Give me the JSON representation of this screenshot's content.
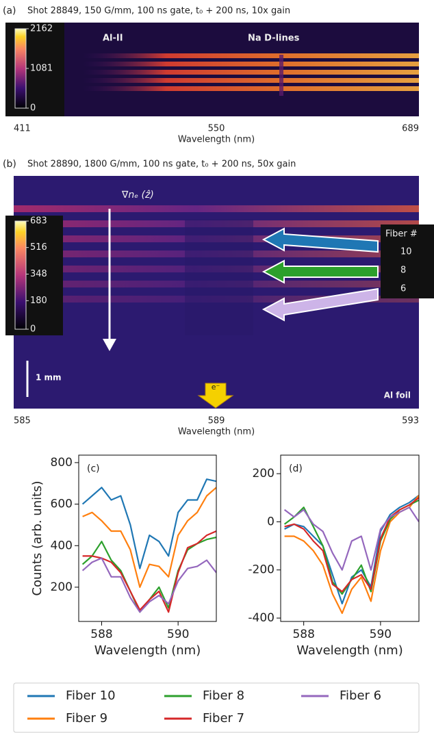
{
  "chart_data": [
    {
      "type": "image",
      "label": "(a)",
      "title": "Shot 28849, 150 G/mm, 100 ns gate, t₀ + 200 ns, 10x gain",
      "xlabel": "Wavelength (nm)",
      "xlim": [
        411,
        689
      ],
      "xticks": [
        411,
        550,
        689
      ],
      "clim": [
        0,
        2162
      ],
      "cticks": [
        0,
        1081,
        2162
      ],
      "annotations": [
        "Al-II",
        "Na D-lines"
      ]
    },
    {
      "type": "image",
      "label": "(b)",
      "title": "Shot 28890, 1800 G/mm, 100 ns gate, t₀ + 200 ns, 50x gain",
      "xlabel": "Wavelength (nm)",
      "xlim": [
        585,
        593
      ],
      "xticks": [
        585,
        589,
        593
      ],
      "clim": [
        0,
        683
      ],
      "cticks": [
        0,
        180,
        348,
        516,
        683
      ],
      "annotations": [
        "∇nₑ (ẑ)",
        "1 mm",
        "e⁻",
        "Al foil"
      ],
      "fibers": {
        "title": "Fiber #",
        "labels": [
          "10",
          "8",
          "6"
        ]
      }
    },
    {
      "type": "line",
      "label": "(c)",
      "ylabel": "Counts (arb. units)",
      "xlabel": "Wavelength (nm)",
      "x": [
        587.5,
        587.75,
        588,
        588.25,
        588.5,
        588.75,
        589,
        589.25,
        589.5,
        589.75,
        590,
        590.25,
        590.5,
        590.75,
        591
      ],
      "xlim": [
        587.4,
        591
      ],
      "xticks": [
        588,
        590
      ],
      "ylim": [
        35,
        836
      ],
      "yticks": [
        200,
        400,
        600,
        800
      ],
      "series": [
        {
          "name": "Fiber 10",
          "color": "#1f77b4",
          "values": [
            600,
            640,
            680,
            620,
            640,
            500,
            290,
            450,
            420,
            350,
            560,
            620,
            620,
            720,
            710
          ]
        },
        {
          "name": "Fiber 9",
          "color": "#ff7f0e",
          "values": [
            540,
            560,
            520,
            470,
            470,
            380,
            200,
            310,
            300,
            250,
            450,
            520,
            560,
            640,
            680
          ]
        },
        {
          "name": "Fiber 8",
          "color": "#2ca02c",
          "values": [
            310,
            350,
            420,
            330,
            280,
            180,
            80,
            140,
            200,
            100,
            280,
            380,
            410,
            430,
            440
          ]
        },
        {
          "name": "Fiber 7",
          "color": "#d62728",
          "values": [
            350,
            350,
            340,
            320,
            270,
            180,
            90,
            140,
            180,
            80,
            270,
            390,
            410,
            450,
            470
          ]
        },
        {
          "name": "Fiber 6",
          "color": "#9467bd",
          "values": [
            280,
            320,
            340,
            250,
            250,
            150,
            80,
            130,
            160,
            120,
            230,
            290,
            300,
            330,
            270
          ]
        }
      ]
    },
    {
      "type": "line",
      "label": "(d)",
      "xlabel": "Wavelength (nm)",
      "x": [
        587.5,
        587.75,
        588,
        588.25,
        588.5,
        588.75,
        589,
        589.25,
        589.5,
        589.75,
        590,
        590.25,
        590.5,
        590.75,
        591
      ],
      "xlim": [
        587.4,
        591
      ],
      "xticks": [
        588,
        590
      ],
      "ylim": [
        -414,
        277
      ],
      "yticks": [
        -400,
        -200,
        0,
        200
      ],
      "series": [
        {
          "color": "#1f77b4",
          "values": [
            -30,
            -10,
            -20,
            -60,
            -100,
            -220,
            -340,
            -230,
            -200,
            -270,
            -40,
            30,
            60,
            80,
            110
          ]
        },
        {
          "color": "#ff7f0e",
          "values": [
            -60,
            -60,
            -80,
            -120,
            -180,
            -300,
            -380,
            -280,
            -230,
            -330,
            -120,
            0,
            40,
            60,
            110
          ]
        },
        {
          "color": "#2ca02c",
          "values": [
            -10,
            20,
            60,
            -20,
            -100,
            -250,
            -300,
            -240,
            -180,
            -290,
            -80,
            10,
            50,
            70,
            90
          ]
        },
        {
          "color": "#d62728",
          "values": [
            -20,
            -10,
            -30,
            -80,
            -120,
            -260,
            -290,
            -240,
            -220,
            -280,
            -70,
            20,
            50,
            70,
            100
          ]
        },
        {
          "color": "#9467bd",
          "values": [
            50,
            20,
            50,
            -10,
            -40,
            -130,
            -200,
            -80,
            -60,
            -200,
            -30,
            20,
            40,
            60,
            0
          ]
        }
      ]
    }
  ]
}
